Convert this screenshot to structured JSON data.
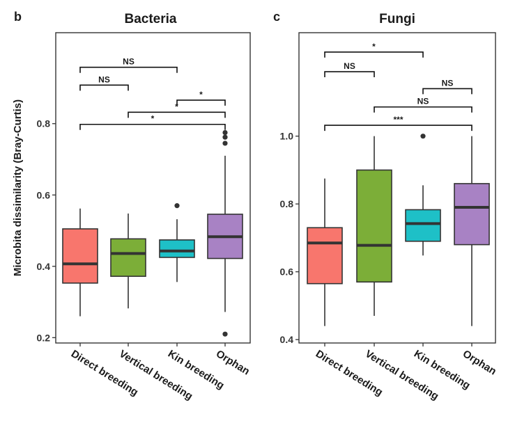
{
  "chart_data": [
    {
      "panel": "b",
      "title": "Bacteria",
      "type": "box",
      "ylabel": "Microbita dissimilarity (Bray-Curtis)",
      "ylim": [
        0.185,
        1.055
      ],
      "yticks": [
        0.2,
        0.4,
        0.6,
        0.8
      ],
      "ytick_labels": [
        "0.2",
        "0.4",
        "0.6",
        "0.8"
      ],
      "categories": [
        "Direct breeding",
        "Vertical breeding",
        "Kin breeding",
        "Orphan"
      ],
      "colors": [
        "#F8766D",
        "#7CAE38",
        "#1EC0C7",
        "#A882C4"
      ],
      "boxes": [
        {
          "min": 0.26,
          "q1": 0.353,
          "median": 0.407,
          "q3": 0.505,
          "max": 0.562,
          "outliers": []
        },
        {
          "min": 0.282,
          "q1": 0.372,
          "median": 0.436,
          "q3": 0.477,
          "max": 0.548,
          "outliers": []
        },
        {
          "min": 0.356,
          "q1": 0.425,
          "median": 0.443,
          "q3": 0.474,
          "max": 0.532,
          "outliers": [
            0.57
          ]
        },
        {
          "min": 0.272,
          "q1": 0.422,
          "median": 0.483,
          "q3": 0.546,
          "max": 0.71,
          "outliers": [
            0.745,
            0.762,
            0.775,
            0.21
          ]
        }
      ],
      "comparisons": [
        {
          "from": 0,
          "to": 2,
          "y": 0.958,
          "label": "NS"
        },
        {
          "from": 0,
          "to": 1,
          "y": 0.908,
          "label": "NS"
        },
        {
          "from": 2,
          "to": 3,
          "y": 0.866,
          "label": "*"
        },
        {
          "from": 1,
          "to": 3,
          "y": 0.832,
          "label": "*"
        },
        {
          "from": 0,
          "to": 3,
          "y": 0.798,
          "label": "*"
        }
      ]
    },
    {
      "panel": "c",
      "title": "Fungi",
      "type": "box",
      "ylabel": "",
      "ylim": [
        0.39,
        1.305
      ],
      "yticks": [
        0.4,
        0.6,
        0.8,
        1.0
      ],
      "ytick_labels": [
        "0.4",
        "0.6",
        "0.8",
        "1.0"
      ],
      "categories": [
        "Direct breeding",
        "Vertical breeding",
        "Kin breeding",
        "Orphan"
      ],
      "colors": [
        "#F8766D",
        "#7CAE38",
        "#1EC0C7",
        "#A882C4"
      ],
      "boxes": [
        {
          "min": 0.44,
          "q1": 0.565,
          "median": 0.685,
          "q3": 0.73,
          "max": 0.875,
          "outliers": []
        },
        {
          "min": 0.47,
          "q1": 0.57,
          "median": 0.678,
          "q3": 0.9,
          "max": 1.0,
          "outliers": []
        },
        {
          "min": 0.648,
          "q1": 0.69,
          "median": 0.742,
          "q3": 0.783,
          "max": 0.855,
          "outliers": [
            1.0
          ]
        },
        {
          "min": 0.44,
          "q1": 0.68,
          "median": 0.79,
          "q3": 0.86,
          "max": 1.0,
          "outliers": []
        }
      ],
      "comparisons": [
        {
          "from": 0,
          "to": 2,
          "y": 1.248,
          "label": "*"
        },
        {
          "from": 0,
          "to": 1,
          "y": 1.19,
          "label": "NS"
        },
        {
          "from": 2,
          "to": 3,
          "y": 1.14,
          "label": "NS"
        },
        {
          "from": 1,
          "to": 3,
          "y": 1.086,
          "label": "NS"
        },
        {
          "from": 0,
          "to": 3,
          "y": 1.032,
          "label": "***"
        }
      ]
    }
  ]
}
